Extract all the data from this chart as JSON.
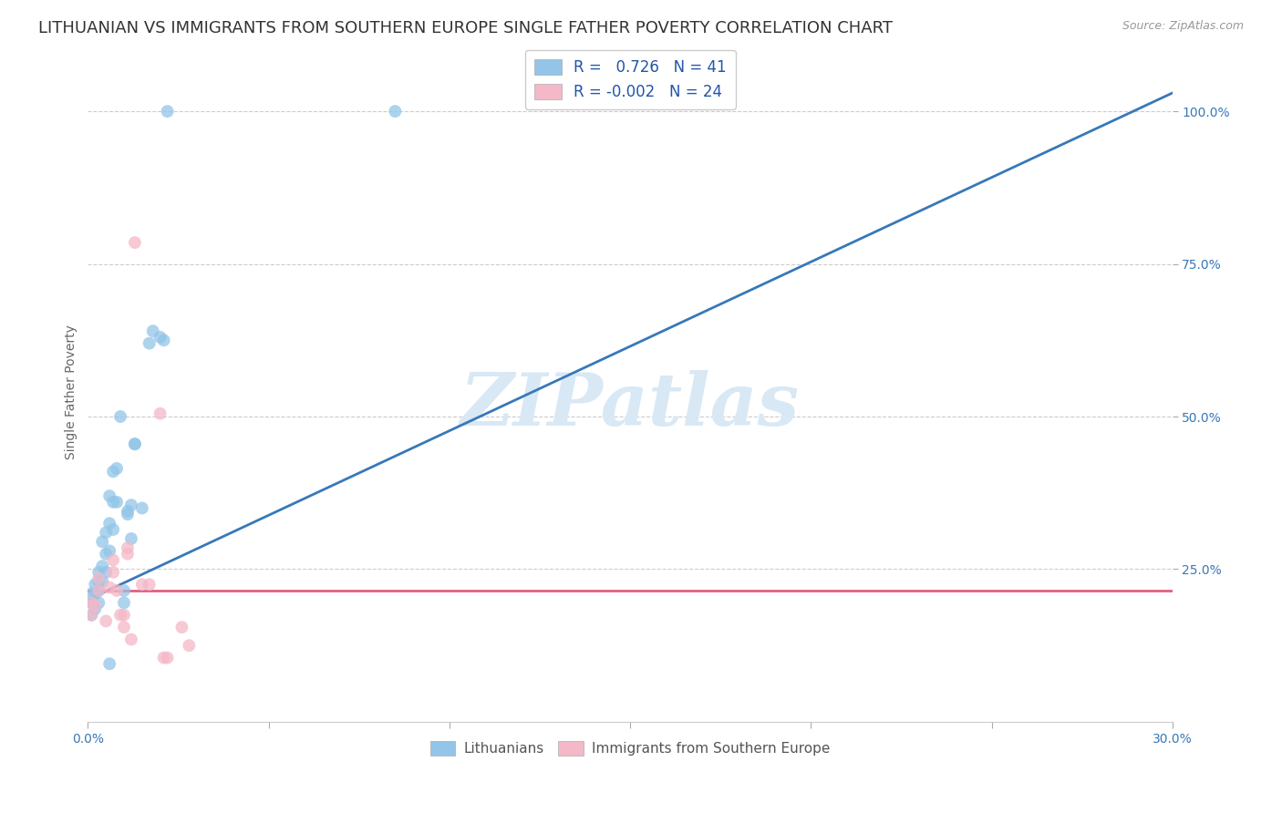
{
  "title": "LITHUANIAN VS IMMIGRANTS FROM SOUTHERN EUROPE SINGLE FATHER POVERTY CORRELATION CHART",
  "source": "Source: ZipAtlas.com",
  "ylabel": "Single Father Poverty",
  "xlim": [
    0.0,
    0.3
  ],
  "ylim": [
    0.0,
    1.08
  ],
  "R_blue": 0.726,
  "N_blue": 41,
  "R_pink": -0.002,
  "N_pink": 24,
  "blue_color": "#92c5e8",
  "pink_color": "#f4b8c8",
  "blue_line_color": "#3878b8",
  "pink_line_color": "#e06080",
  "blue_line_x0": 0.0,
  "blue_line_y0": 0.2,
  "blue_line_x1": 0.3,
  "blue_line_y1": 1.03,
  "pink_line_x0": 0.0,
  "pink_line_x1": 0.3,
  "pink_line_y": 0.215,
  "watermark": "ZIPatlas",
  "watermark_color": "#d8e8f5",
  "blue_dots": [
    [
      0.001,
      0.175
    ],
    [
      0.001,
      0.195
    ],
    [
      0.001,
      0.21
    ],
    [
      0.002,
      0.185
    ],
    [
      0.002,
      0.21
    ],
    [
      0.002,
      0.225
    ],
    [
      0.003,
      0.195
    ],
    [
      0.003,
      0.215
    ],
    [
      0.003,
      0.23
    ],
    [
      0.003,
      0.245
    ],
    [
      0.004,
      0.23
    ],
    [
      0.004,
      0.255
    ],
    [
      0.004,
      0.295
    ],
    [
      0.005,
      0.245
    ],
    [
      0.005,
      0.275
    ],
    [
      0.005,
      0.31
    ],
    [
      0.006,
      0.28
    ],
    [
      0.006,
      0.325
    ],
    [
      0.006,
      0.37
    ],
    [
      0.007,
      0.315
    ],
    [
      0.007,
      0.36
    ],
    [
      0.007,
      0.41
    ],
    [
      0.008,
      0.36
    ],
    [
      0.008,
      0.415
    ],
    [
      0.009,
      0.5
    ],
    [
      0.01,
      0.195
    ],
    [
      0.01,
      0.215
    ],
    [
      0.011,
      0.34
    ],
    [
      0.011,
      0.345
    ],
    [
      0.012,
      0.355
    ],
    [
      0.012,
      0.3
    ],
    [
      0.013,
      0.455
    ],
    [
      0.013,
      0.455
    ],
    [
      0.015,
      0.35
    ],
    [
      0.017,
      0.62
    ],
    [
      0.018,
      0.64
    ],
    [
      0.02,
      0.63
    ],
    [
      0.021,
      0.625
    ],
    [
      0.022,
      1.0
    ],
    [
      0.085,
      1.0
    ],
    [
      0.006,
      0.095
    ]
  ],
  "pink_dots": [
    [
      0.001,
      0.175
    ],
    [
      0.001,
      0.195
    ],
    [
      0.002,
      0.19
    ],
    [
      0.003,
      0.215
    ],
    [
      0.003,
      0.235
    ],
    [
      0.005,
      0.165
    ],
    [
      0.006,
      0.22
    ],
    [
      0.007,
      0.245
    ],
    [
      0.007,
      0.265
    ],
    [
      0.008,
      0.215
    ],
    [
      0.009,
      0.175
    ],
    [
      0.01,
      0.155
    ],
    [
      0.01,
      0.175
    ],
    [
      0.011,
      0.275
    ],
    [
      0.011,
      0.285
    ],
    [
      0.012,
      0.135
    ],
    [
      0.013,
      0.785
    ],
    [
      0.015,
      0.225
    ],
    [
      0.017,
      0.225
    ],
    [
      0.02,
      0.505
    ],
    [
      0.021,
      0.105
    ],
    [
      0.022,
      0.105
    ],
    [
      0.026,
      0.155
    ],
    [
      0.028,
      0.125
    ]
  ],
  "background_color": "#ffffff",
  "grid_color": "#cccccc",
  "title_fontsize": 13,
  "axis_fontsize": 10,
  "tick_fontsize": 10,
  "dot_size": 100,
  "dot_alpha": 0.75
}
